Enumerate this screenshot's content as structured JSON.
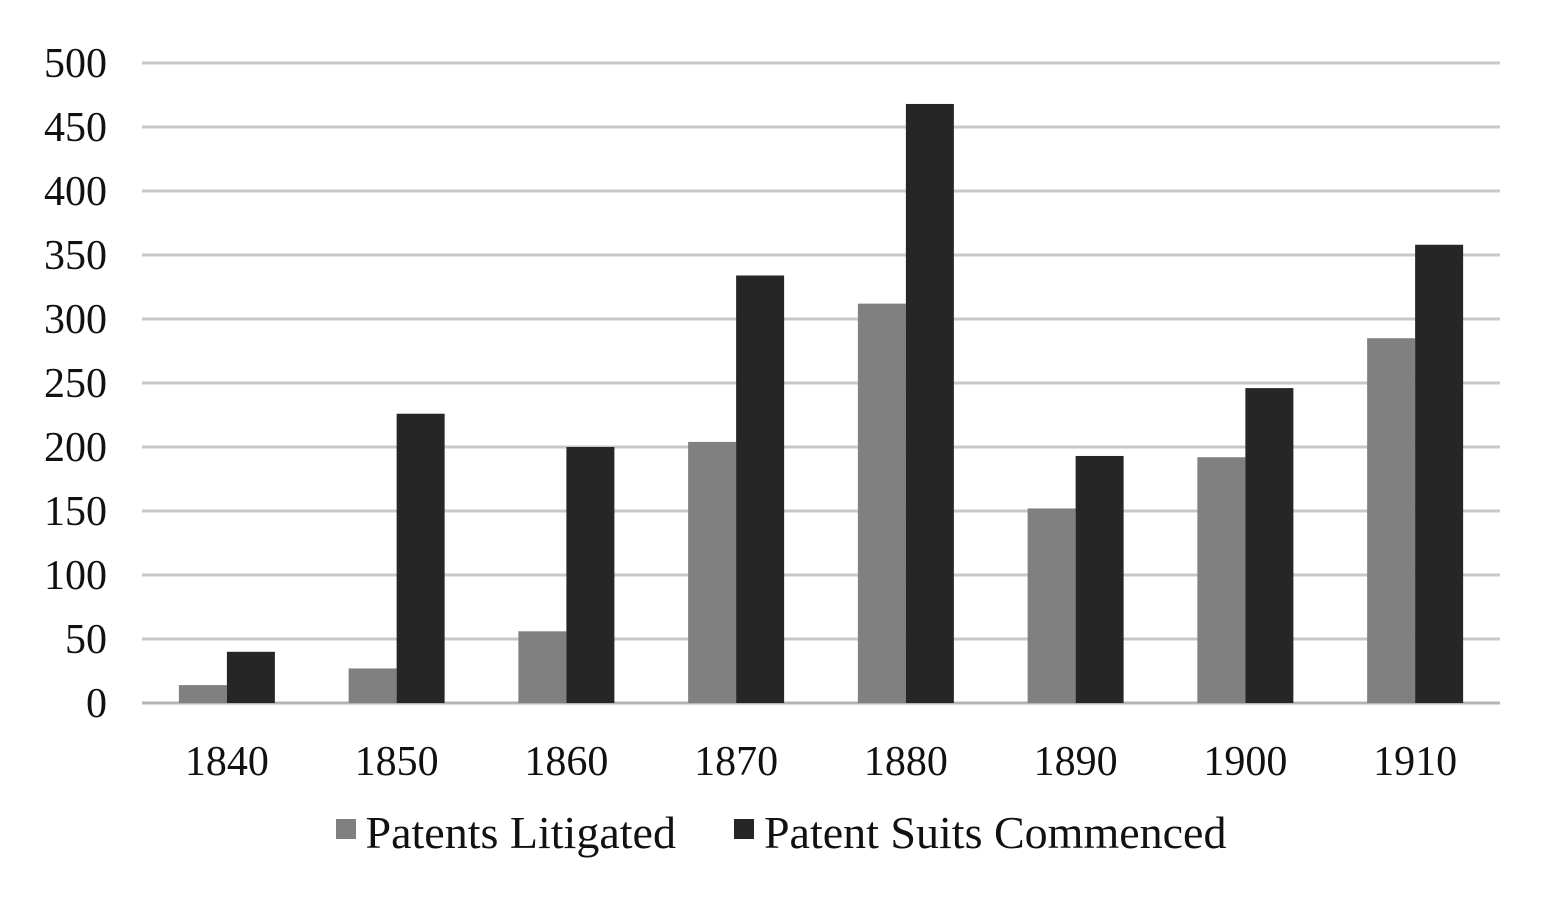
{
  "chart_data": {
    "type": "bar",
    "title": "",
    "xlabel": "",
    "ylabel": "",
    "categories": [
      "1840",
      "1850",
      "1860",
      "1870",
      "1880",
      "1890",
      "1900",
      "1910"
    ],
    "series": [
      {
        "name": "Patents Litigated",
        "color": "#808080",
        "values": [
          14,
          27,
          56,
          204,
          312,
          152,
          192,
          285
        ]
      },
      {
        "name": "Patent Suits Commenced",
        "color": "#262626",
        "values": [
          40,
          226,
          200,
          334,
          468,
          193,
          246,
          358
        ]
      }
    ],
    "ylim": [
      0,
      500
    ],
    "yticks": [
      "0",
      "50",
      "100",
      "150",
      "200",
      "250",
      "300",
      "350",
      "400",
      "450",
      "500"
    ],
    "grid": true,
    "legend_position": "bottom"
  },
  "colors": {
    "gridline": "#c8c8c8",
    "axis_line": "#b4b4b4",
    "text": "#111111"
  }
}
